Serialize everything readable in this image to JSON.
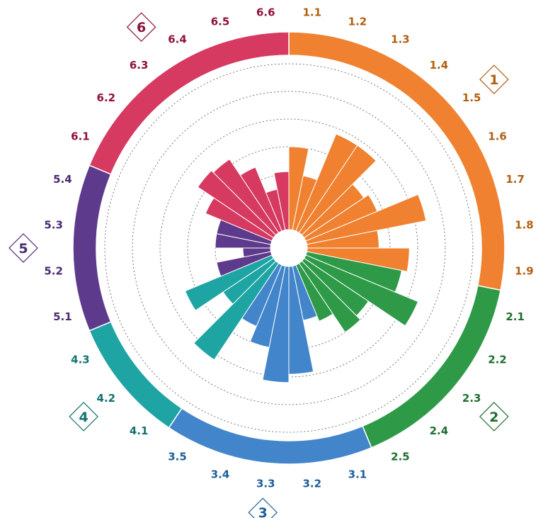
{
  "chart_data": {
    "type": "bar",
    "subtype": "circular-bar",
    "title": "",
    "xlabel": "",
    "ylabel": "",
    "ylim": [
      0,
      6.4
    ],
    "grid": true,
    "gridlines": [
      2,
      3,
      4,
      5,
      6
    ],
    "groups": [
      {
        "name": "1",
        "color": "#EF8130",
        "label_color": "#B05F10",
        "categories": [
          "1.1",
          "1.2",
          "1.3",
          "1.4",
          "1.5",
          "1.6",
          "1.7",
          "1.8",
          "1.9"
        ],
        "values": [
          3.0,
          2.0,
          3.8,
          3.8,
          2.6,
          2.8,
          4.4,
          2.6,
          3.7
        ]
      },
      {
        "name": "2",
        "color": "#2E9A48",
        "label_color": "#1E6E2E",
        "categories": [
          "2.1",
          "2.2",
          "2.3",
          "2.4",
          "2.5"
        ],
        "values": [
          3.5,
          4.4,
          2.8,
          3.0,
          2.2
        ]
      },
      {
        "name": "3",
        "color": "#4285CA",
        "label_color": "#1F5E96",
        "categories": [
          "3.1",
          "3.2",
          "3.3",
          "3.4",
          "3.5"
        ],
        "values": [
          2.0,
          3.9,
          4.2,
          3.0,
          2.4
        ]
      },
      {
        "name": "4",
        "color": "#1FA4A4",
        "label_color": "#13716F",
        "categories": [
          "4.1",
          "4.2",
          "4.3"
        ],
        "values": [
          4.2,
          2.2,
          3.4
        ]
      },
      {
        "name": "5",
        "color": "#5E3A8C",
        "label_color": "#4A2A72",
        "categories": [
          "5.1",
          "5.2",
          "5.3",
          "5.4"
        ],
        "values": [
          2.0,
          1.0,
          2.0,
          2.0
        ]
      },
      {
        "name": "6",
        "color": "#D63A60",
        "label_color": "#8E1238",
        "categories": [
          "6.1",
          "6.2",
          "6.3",
          "6.4",
          "6.5",
          "6.6"
        ],
        "values": [
          2.6,
          3.3,
          3.2,
          2.5,
          1.5,
          2.1
        ]
      }
    ]
  }
}
